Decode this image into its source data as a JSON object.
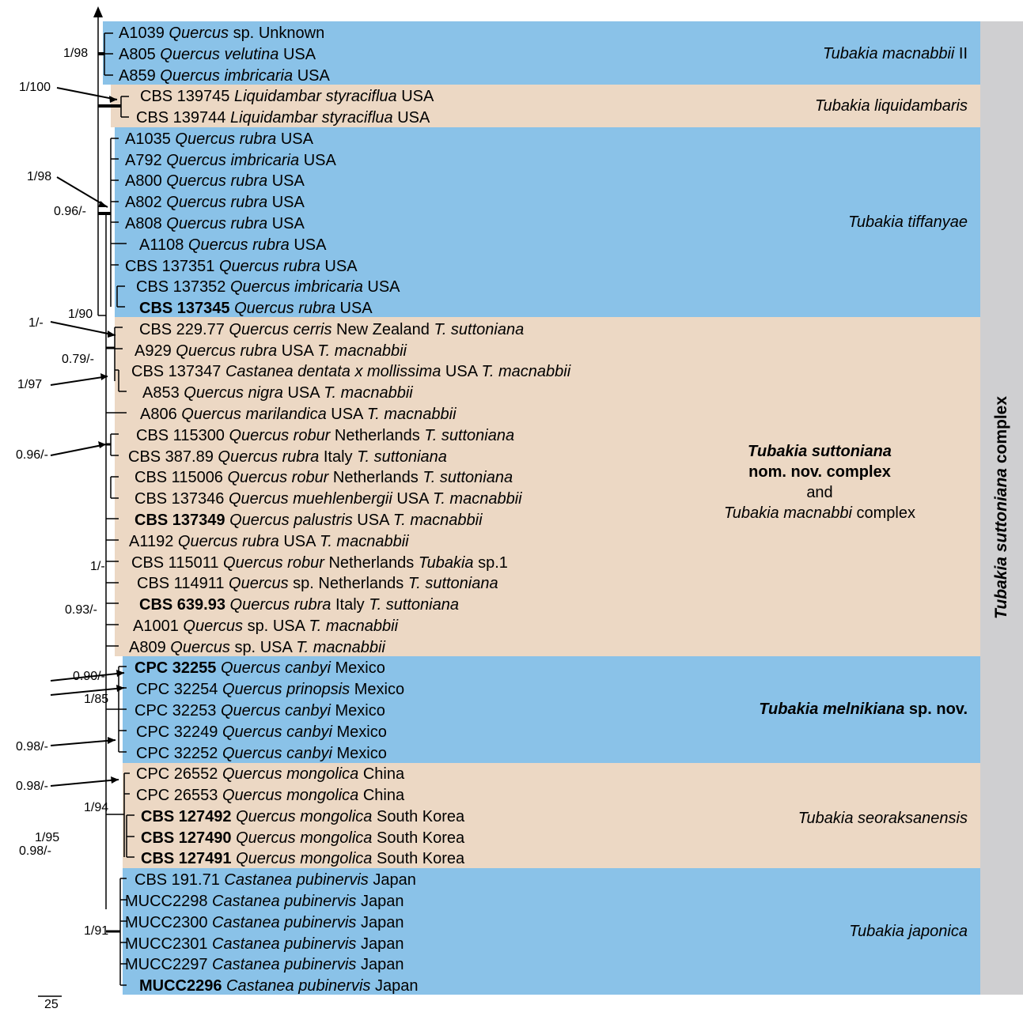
{
  "complex_label": {
    "genus": "Tubakia",
    "species": "suttoniana",
    "suffix": "complex"
  },
  "scale_bar": "25",
  "taxa": [
    {
      "strain": "A1039",
      "genus": "Quercus",
      "epithet": "sp.",
      "country": "Unknown",
      "bold": false
    },
    {
      "strain": "A805",
      "genus": "Quercus",
      "epithet": "velutina",
      "country": "USA",
      "bold": false
    },
    {
      "strain": "A859",
      "genus": "Quercus",
      "epithet": "imbricaria",
      "country": "USA",
      "bold": false
    },
    {
      "strain": "CBS 139745",
      "genus": "Liquidambar",
      "epithet": "styraciflua",
      "country": "USA",
      "bold": false
    },
    {
      "strain": "CBS 139744",
      "genus": "Liquidambar",
      "epithet": "styraciflua",
      "country": "USA",
      "bold": false
    },
    {
      "strain": "A1035",
      "genus": "Quercus",
      "epithet": "rubra",
      "country": "USA",
      "bold": false
    },
    {
      "strain": "A792",
      "genus": "Quercus",
      "epithet": "imbricaria",
      "country": "USA",
      "bold": false
    },
    {
      "strain": "A800",
      "genus": "Quercus",
      "epithet": "rubra",
      "country": "USA",
      "bold": false
    },
    {
      "strain": "A802",
      "genus": "Quercus",
      "epithet": "rubra",
      "country": "USA",
      "bold": false
    },
    {
      "strain": "A808",
      "genus": "Quercus",
      "epithet": "rubra",
      "country": "USA",
      "bold": false
    },
    {
      "strain": "A1108",
      "genus": "Quercus",
      "epithet": "rubra",
      "country": "USA",
      "bold": false
    },
    {
      "strain": "CBS 137351",
      "genus": "Quercus",
      "epithet": "rubra",
      "country": "USA",
      "bold": false
    },
    {
      "strain": "CBS 137352",
      "genus": "Quercus",
      "epithet": "imbricaria",
      "country": "USA",
      "bold": false
    },
    {
      "strain": "CBS 137345",
      "genus": "Quercus",
      "epithet": "rubra",
      "country": "USA",
      "bold": true
    },
    {
      "strain": "CBS 229.77",
      "genus": "Quercus",
      "epithet": "cerris",
      "country": "New Zealand",
      "ident": "T. suttoniana",
      "bold": false
    },
    {
      "strain": "A929",
      "genus": "Quercus",
      "epithet": "rubra",
      "country": "USA",
      "ident": "T. macnabbii",
      "bold": false
    },
    {
      "strain": "CBS 137347",
      "genus": "Castanea",
      "epithet": "dentata x mollissima",
      "country": "USA",
      "ident": "T. macnabbii",
      "bold": false
    },
    {
      "strain": "A853",
      "genus": "Quercus",
      "epithet": "nigra",
      "country": "USA",
      "ident": "T. macnabbii",
      "bold": false
    },
    {
      "strain": "A806",
      "genus": "Quercus",
      "epithet": "marilandica",
      "country": "USA",
      "ident": "T. macnabbii",
      "bold": false
    },
    {
      "strain": "CBS 115300",
      "genus": "Quercus",
      "epithet": "robur",
      "country": "Netherlands",
      "ident": "T. suttoniana",
      "bold": false
    },
    {
      "strain": "CBS 387.89",
      "genus": "Quercus",
      "epithet": "rubra",
      "country": "Italy",
      "ident": "T. suttoniana",
      "bold": false
    },
    {
      "strain": "CBS 115006",
      "genus": "Quercus",
      "epithet": "robur",
      "country": "Netherlands",
      "ident": "T. suttoniana",
      "bold": false
    },
    {
      "strain": "CBS 137346",
      "genus": "Quercus",
      "epithet": "muehlenbergii",
      "country": "USA",
      "ident": "T. macnabbii",
      "bold": false
    },
    {
      "strain": "CBS 137349",
      "genus": "Quercus",
      "epithet": "palustris",
      "country": "USA",
      "ident": "T. macnabbii",
      "bold": true
    },
    {
      "strain": "A1192",
      "genus": "Quercus",
      "epithet": "rubra",
      "country": "USA",
      "ident": "T. macnabbii",
      "bold": false
    },
    {
      "strain": "CBS 115011",
      "genus": "Quercus",
      "epithet": "robur",
      "country": "Netherlands",
      "ident": "Tubakia sp.1",
      "ident_italic": "Tubakia",
      "ident_plain": "sp.1",
      "bold": false
    },
    {
      "strain": "CBS 114911",
      "genus": "Quercus",
      "epithet": "sp.",
      "country": "Netherlands",
      "ident": "T. suttoniana",
      "bold": false
    },
    {
      "strain": "CBS 639.93",
      "genus": "Quercus",
      "epithet": "rubra",
      "country": "Italy",
      "ident": "T. suttoniana",
      "bold": true
    },
    {
      "strain": "A1001",
      "genus": "Quercus",
      "epithet": "sp.",
      "country": "USA",
      "ident": "T. macnabbii",
      "bold": false
    },
    {
      "strain": "A809",
      "genus": "Quercus",
      "epithet": "sp.",
      "country": "USA",
      "ident": "T. macnabbii",
      "bold": false
    },
    {
      "strain": "CPC 32255",
      "genus": "Quercus",
      "epithet": "canbyi",
      "country": "Mexico",
      "bold": true
    },
    {
      "strain": "CPC 32254",
      "genus": "Quercus",
      "epithet": "prinopsis",
      "country": "Mexico",
      "bold": false
    },
    {
      "strain": "CPC 32253",
      "genus": "Quercus",
      "epithet": "canbyi",
      "country": "Mexico",
      "bold": false
    },
    {
      "strain": "CPC 32249",
      "genus": "Quercus",
      "epithet": "canbyi",
      "country": "Mexico",
      "bold": false
    },
    {
      "strain": "CPC 32252",
      "genus": "Quercus",
      "epithet": "canbyi",
      "country": "Mexico",
      "bold": false
    },
    {
      "strain": "CPC 26552",
      "genus": "Quercus",
      "epithet": "mongolica",
      "country": "China",
      "bold": false
    },
    {
      "strain": "CPC 26553",
      "genus": "Quercus",
      "epithet": "mongolica",
      "country": "China",
      "bold": false
    },
    {
      "strain": "CBS 127492",
      "genus": "Quercus",
      "epithet": "mongolica",
      "country": "South Korea",
      "bold": true
    },
    {
      "strain": "CBS 127490",
      "genus": "Quercus",
      "epithet": "mongolica",
      "country": "South Korea",
      "bold": true
    },
    {
      "strain": "CBS 127491",
      "genus": "Quercus",
      "epithet": "mongolica",
      "country": "South Korea",
      "bold": true
    },
    {
      "strain": "CBS 191.71",
      "genus": "Castanea",
      "epithet": "pubinervis",
      "country": "Japan",
      "bold": false
    },
    {
      "strain": "MUCC2298",
      "genus": "Castanea",
      "epithet": "pubinervis",
      "country": "Japan",
      "bold": false
    },
    {
      "strain": "MUCC2300",
      "genus": "Castanea",
      "epithet": "pubinervis",
      "country": "Japan",
      "bold": false
    },
    {
      "strain": "MUCC2301",
      "genus": "Castanea",
      "epithet": "pubinervis",
      "country": "Japan",
      "bold": false
    },
    {
      "strain": "MUCC2297",
      "genus": "Castanea",
      "epithet": "pubinervis",
      "country": "Japan",
      "bold": false
    },
    {
      "strain": "MUCC2296",
      "genus": "Castanea",
      "epithet": "pubinervis",
      "country": "Japan",
      "bold": true
    }
  ],
  "clades": [
    {
      "name": "Tubakia macnabbii II",
      "color": "#8ac2e8"
    },
    {
      "name": "Tubakia liquidambaris",
      "color": "#ecd8c4"
    },
    {
      "name": "Tubakia tiffanyae",
      "color": "#8ac2e8"
    },
    {
      "line1": "Tubakia suttoniana",
      "line2": "nom. nov. complex",
      "line3": "and",
      "line4": "Tubakia macnabbi complex",
      "color": "#ecd8c4"
    },
    {
      "name": "Tubakia melnikiana sp. nov.",
      "color": "#8ac2e8"
    },
    {
      "name": "Tubakia seoraksanensis",
      "color": "#ecd8c4"
    },
    {
      "name": "Tubakia japonica",
      "color": "#8ac2e8"
    }
  ],
  "supports": [
    "1/98",
    "1/100",
    "1/98",
    "0.96/-",
    "1/90",
    "1/-",
    "0.79/-",
    "1/97",
    "0.96/-",
    "1/-",
    "0.93/-",
    "0.90/-",
    "1/85",
    "0.98/-",
    "0.98/-",
    "1/94",
    "1/95",
    "0.98/-",
    "1/91"
  ]
}
